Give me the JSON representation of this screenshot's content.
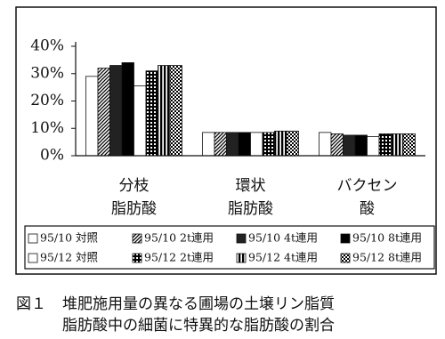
{
  "chart_data": {
    "type": "bar",
    "categories": [
      "分枝\n脂肪酸",
      "環状\n脂肪酸",
      "バクセン\n酸"
    ],
    "series": [
      {
        "name": "95/10 対照",
        "color": "#ffffff",
        "pattern": "solid",
        "values": [
          29,
          8.5,
          8.5
        ]
      },
      {
        "name": "95/10 2t連用",
        "color": "#000000",
        "pattern": "diagonal",
        "values": [
          32,
          8.5,
          8
        ]
      },
      {
        "name": "95/10 4t連用",
        "color": "#222222",
        "pattern": "solid",
        "values": [
          33,
          8.5,
          7.5
        ]
      },
      {
        "name": "95/10 8t連用",
        "color": "#000000",
        "pattern": "solid",
        "values": [
          34,
          8.5,
          7.5
        ]
      },
      {
        "name": "95/12 対照",
        "color": "#ffffff",
        "pattern": "solid",
        "values": [
          25.5,
          8.5,
          7
        ]
      },
      {
        "name": "95/12 2t連用",
        "color": "#000000",
        "pattern": "grid",
        "values": [
          31,
          8.5,
          8
        ]
      },
      {
        "name": "95/12 4t連用",
        "color": "#000000",
        "pattern": "vertical",
        "values": [
          33,
          9,
          8
        ]
      },
      {
        "name": "95/12 8t連用",
        "color": "#000000",
        "pattern": "checker",
        "values": [
          33,
          9,
          8
        ]
      }
    ],
    "ylim": [
      0,
      40
    ],
    "yticks": [
      {
        "value": 0,
        "label": "0%"
      },
      {
        "value": 10,
        "label": "10%"
      },
      {
        "value": 20,
        "label": "20%"
      },
      {
        "value": 30,
        "label": "30%"
      },
      {
        "value": 40,
        "label": "40%"
      }
    ],
    "grid": false
  },
  "caption": {
    "label": "図１",
    "lines": [
      "堆肥施用量の異なる圃場の土壌リン脂質",
      "脂肪酸中の細菌に特異的な脂肪酸の割合"
    ]
  }
}
